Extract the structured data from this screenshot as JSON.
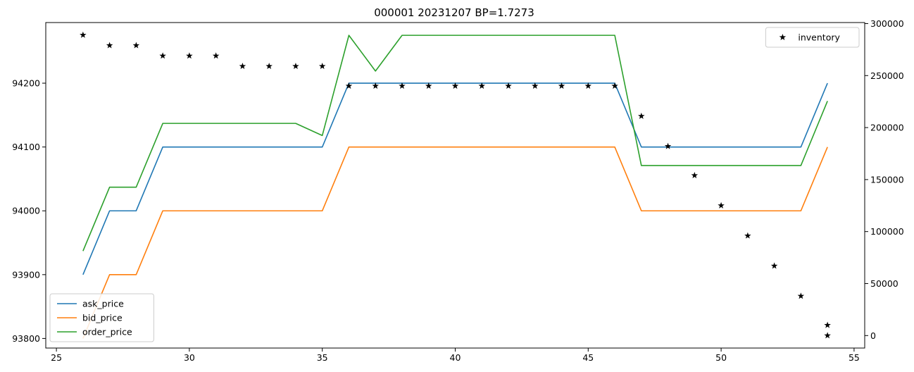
{
  "chart_data": {
    "type": "line",
    "title": "000001 20231207 BP=1.7273",
    "xlabel": "",
    "ylabel": "",
    "y2label": "",
    "xlim": [
      24.6,
      55.4
    ],
    "ylim": [
      93785,
      94295
    ],
    "y2lim": [
      -12000,
      301000
    ],
    "x_ticks": [
      25,
      30,
      35,
      40,
      45,
      50,
      55
    ],
    "y_ticks": [
      93800,
      93900,
      94000,
      94100,
      94200
    ],
    "y2_ticks": [
      0,
      50000,
      100000,
      150000,
      200000,
      250000,
      300000
    ],
    "grid": false,
    "x": [
      26,
      27,
      28,
      29,
      30,
      31,
      32,
      33,
      34,
      35,
      36,
      37,
      38,
      39,
      40,
      41,
      42,
      43,
      44,
      45,
      46,
      47,
      48,
      49,
      50,
      51,
      52,
      53,
      54
    ],
    "series": [
      {
        "name": "ask_price",
        "axis": "left",
        "style": "line",
        "color": "#1f77b4",
        "values": [
          93900,
          94000,
          94000,
          94100,
          94100,
          94100,
          94100,
          94100,
          94100,
          94100,
          94200,
          94200,
          94200,
          94200,
          94200,
          94200,
          94200,
          94200,
          94200,
          94200,
          94200,
          94100,
          94100,
          94100,
          94100,
          94100,
          94100,
          94100,
          94200
        ]
      },
      {
        "name": "bid_price",
        "axis": "left",
        "style": "line",
        "color": "#ff7f0e",
        "values": [
          93800,
          93900,
          93900,
          94000,
          94000,
          94000,
          94000,
          94000,
          94000,
          94000,
          94100,
          94100,
          94100,
          94100,
          94100,
          94100,
          94100,
          94100,
          94100,
          94100,
          94100,
          94000,
          94000,
          94000,
          94000,
          94000,
          94000,
          94000,
          94100
        ]
      },
      {
        "name": "order_price",
        "axis": "left",
        "style": "line",
        "color": "#2ca02c",
        "values": [
          93937,
          94037,
          94037,
          94137,
          94137,
          94137,
          94137,
          94137,
          94137,
          94118,
          94275,
          94219,
          94275,
          94275,
          94275,
          94275,
          94275,
          94275,
          94275,
          94275,
          94275,
          94071,
          94071,
          94071,
          94071,
          94071,
          94071,
          94071,
          94172
        ]
      },
      {
        "name": "inventory",
        "axis": "right",
        "style": "marker",
        "marker": "star",
        "color": "#000000",
        "x": [
          26,
          27,
          28,
          29,
          30,
          31,
          32,
          33,
          34,
          35,
          36,
          37,
          38,
          39,
          40,
          41,
          42,
          43,
          44,
          45,
          46,
          47,
          48,
          49,
          50,
          51,
          52,
          53,
          54,
          54
        ],
        "values": [
          289000,
          279000,
          279000,
          269000,
          269000,
          269000,
          259000,
          259000,
          259000,
          259000,
          240000,
          240000,
          240000,
          240000,
          240000,
          240000,
          240000,
          240000,
          240000,
          240000,
          240000,
          211000,
          182000,
          154000,
          125000,
          96000,
          67000,
          38000,
          10000,
          0
        ]
      }
    ],
    "legends": [
      {
        "placement": "upper right",
        "entries": [
          "inventory"
        ]
      },
      {
        "placement": "lower left",
        "entries": [
          "ask_price",
          "bid_price",
          "order_price"
        ]
      }
    ]
  }
}
